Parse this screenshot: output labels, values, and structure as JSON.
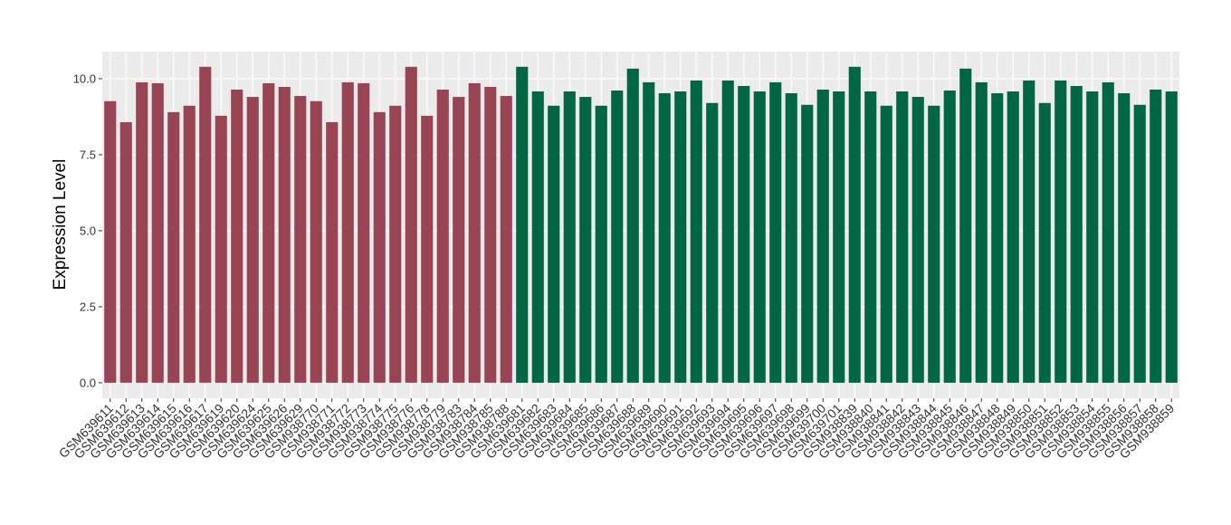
{
  "chart_data": {
    "type": "bar",
    "y_label": "Expression Level",
    "categories": [
      "GSM639611",
      "GSM639612",
      "GSM639613",
      "GSM639614",
      "GSM639615",
      "GSM639616",
      "GSM639617",
      "GSM639619",
      "GSM639620",
      "GSM639624",
      "GSM639625",
      "GSM639626",
      "GSM639629",
      "GSM938770",
      "GSM938771",
      "GSM938772",
      "GSM938773",
      "GSM938774",
      "GSM938775",
      "GSM938776",
      "GSM938778",
      "GSM938779",
      "GSM938783",
      "GSM938784",
      "GSM938785",
      "GSM938788",
      "GSM639681",
      "GSM639682",
      "GSM639683",
      "GSM639684",
      "GSM639685",
      "GSM639686",
      "GSM639687",
      "GSM639688",
      "GSM639689",
      "GSM639690",
      "GSM639691",
      "GSM639692",
      "GSM639693",
      "GSM639694",
      "GSM639695",
      "GSM639696",
      "GSM639697",
      "GSM639698",
      "GSM639699",
      "GSM639700",
      "GSM639701",
      "GSM938839",
      "GSM938840",
      "GSM938841",
      "GSM938842",
      "GSM938843",
      "GSM938844",
      "GSM938845",
      "GSM938846",
      "GSM938847",
      "GSM938848",
      "GSM938849",
      "GSM938850",
      "GSM938851",
      "GSM938852",
      "GSM938853",
      "GSM938854",
      "GSM938855",
      "GSM938856",
      "GSM938857",
      "GSM938858",
      "GSM938859"
    ],
    "series": [
      {
        "color": "#994455",
        "values": [
          9.26,
          8.57,
          9.88,
          9.85,
          8.9,
          9.11,
          10.39,
          8.78,
          9.64,
          9.4,
          9.85,
          9.73,
          9.43,
          9.26,
          8.57,
          9.88,
          9.85,
          8.9,
          9.11,
          10.39,
          8.78,
          9.64,
          9.4,
          9.85,
          9.73,
          9.43,
          null,
          null,
          null,
          null,
          null,
          null,
          null,
          null,
          null,
          null,
          null,
          null,
          null,
          null,
          null,
          null,
          null,
          null,
          null,
          null,
          null,
          null,
          null,
          null,
          null,
          null,
          null,
          null,
          null,
          null,
          null,
          null,
          null,
          null,
          null,
          null,
          null,
          null,
          null,
          null,
          null,
          null
        ]
      },
      {
        "color": "#006644",
        "values": [
          null,
          null,
          null,
          null,
          null,
          null,
          null,
          null,
          null,
          null,
          null,
          null,
          null,
          null,
          null,
          null,
          null,
          null,
          null,
          null,
          null,
          null,
          null,
          null,
          null,
          null,
          10.39,
          9.58,
          9.11,
          9.58,
          9.4,
          9.11,
          9.61,
          10.33,
          9.88,
          9.52,
          9.58,
          9.94,
          9.2,
          9.94,
          9.76,
          9.58,
          9.88,
          9.52,
          9.14,
          9.64,
          9.58,
          10.39,
          9.58,
          9.11,
          9.58,
          9.4,
          9.11,
          9.61,
          10.33,
          9.88,
          9.52,
          9.58,
          9.94,
          9.2,
          9.94,
          9.76,
          9.58,
          9.88,
          9.52,
          9.14,
          9.64,
          9.58
        ]
      }
    ],
    "ylim": [
      -0.51,
      10.89
    ],
    "yticks": [
      {
        "value": 0,
        "label": "0.0"
      },
      {
        "value": 2.5,
        "label": "2.5"
      },
      {
        "value": 5,
        "label": "5.0"
      },
      {
        "value": 7.5,
        "label": "7.5"
      },
      {
        "value": 10,
        "label": "10.0"
      }
    ],
    "grid": true
  }
}
